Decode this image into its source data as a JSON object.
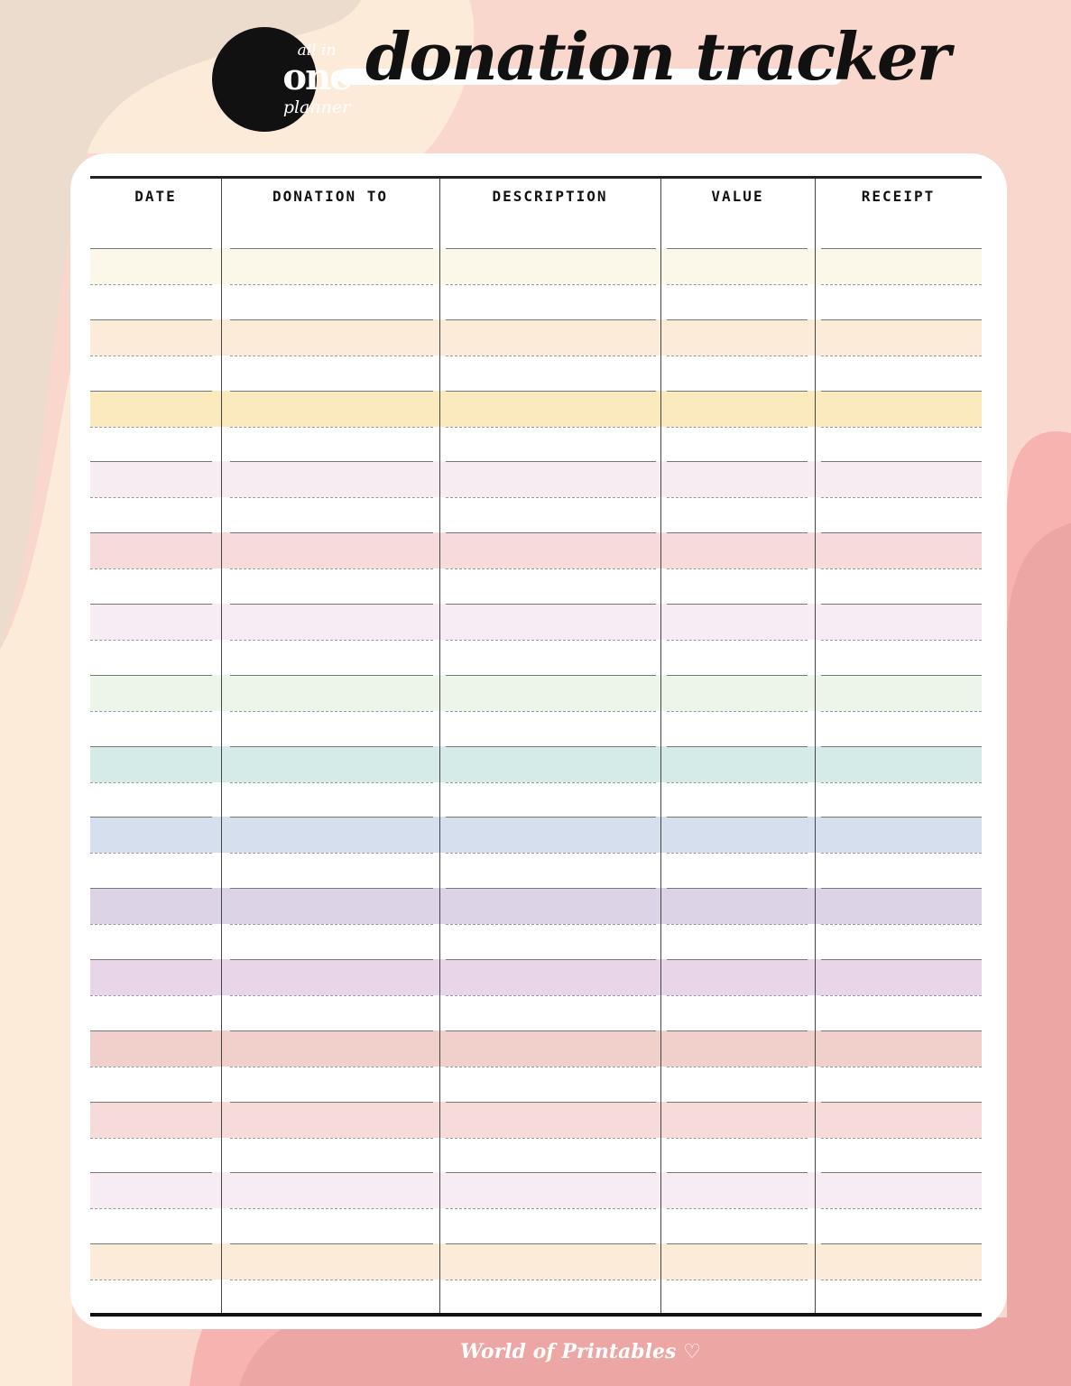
{
  "brand": {
    "logo_line1": "all in",
    "logo_line2": "one",
    "logo_line3": "planner"
  },
  "title": "donation tracker",
  "table": {
    "columns": [
      "DATE",
      "DONATION TO",
      "DESCRIPTION",
      "VALUE",
      "RECEIPT"
    ],
    "row_count": 15,
    "row_colors": [
      "#fbf8ea",
      "#fdebd9",
      "#faeabd",
      "#f8ecf3",
      "#f7dada",
      "#f8ecf4",
      "#edf5e8",
      "#d5ebe8",
      "#d5dfed",
      "#dcd3e7",
      "#e9d5e8",
      "#f1d0cc",
      "#f7dada",
      "#f8ecf4",
      "#fdebd9"
    ]
  },
  "footer": {
    "credit": "World of Printables",
    "heart_icon": "♡"
  },
  "colors": {
    "background_peach": "#f9d7cc",
    "background_cream": "#fdebd9",
    "background_beige": "#ecdccd",
    "background_pink": "#eca6a3"
  }
}
